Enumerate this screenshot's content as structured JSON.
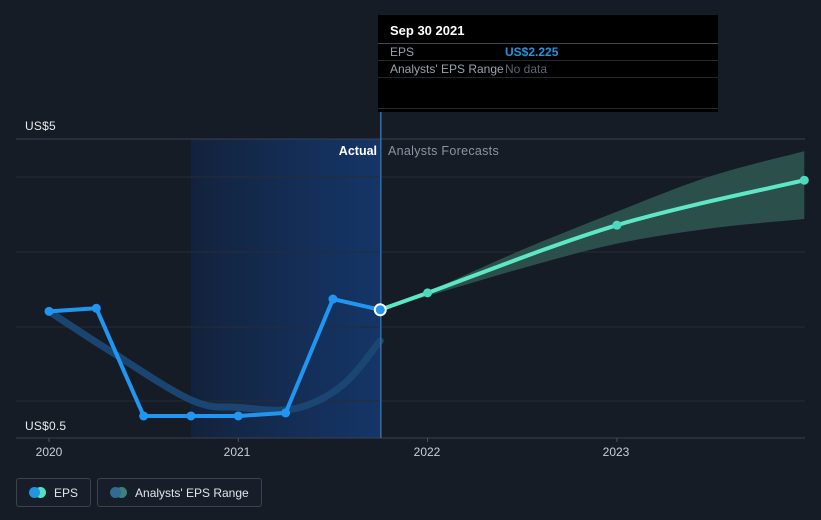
{
  "axes": {
    "y_top_label": "US$5",
    "y_bottom_label": "US$0.5",
    "x_ticks": [
      "2020",
      "2021",
      "2022",
      "2023"
    ]
  },
  "regions": {
    "actual_label": "Actual",
    "forecast_label": "Analysts Forecasts"
  },
  "tooltip": {
    "date": "Sep 30 2021",
    "rows": [
      {
        "label": "EPS",
        "value": "US$2.225",
        "value_color": "#2394df"
      },
      {
        "label": "Analysts' EPS Range",
        "value": "No data",
        "value_color": "#5d6674"
      }
    ]
  },
  "legend": [
    {
      "label": "EPS",
      "colors": [
        "#2394df",
        "#55dec2"
      ]
    },
    {
      "label": "Analysts' EPS Range",
      "colors": [
        "#2f6b93",
        "#41807a"
      ]
    }
  ],
  "colors": {
    "background": "#161c26",
    "eps_actual_line": "#2196f0",
    "eps_forecast_line": "#5de7c5",
    "forecast_marker": "#4fd9bc",
    "past_range_line": "#1b4875",
    "forecast_band_fill": "#2b4f4b",
    "divider_line": "#36699e",
    "gridline": "#252c38",
    "axis_line": "#3a4150"
  },
  "chart_data": {
    "type": "line",
    "title": "EPS: actual vs analysts forecasts",
    "x_tick_years": [
      2020,
      2021,
      2022,
      2023
    ],
    "y_axis": {
      "top_value": 5.0,
      "bottom_value": 0.5,
      "top_label": "US$5",
      "bottom_label": "US$0.5"
    },
    "divider_year": 2021.75,
    "highlight_span_years": [
      2020.75,
      2021.75
    ],
    "series": [
      {
        "name": "EPS (actual)",
        "smooth": false,
        "x": [
          2020.0,
          2020.25,
          2020.5,
          2020.75,
          2021.0,
          2021.25,
          2021.5,
          2021.75
        ],
        "values": [
          2.2,
          2.25,
          0.5,
          0.5,
          0.5,
          0.55,
          2.4,
          2.225
        ]
      },
      {
        "name": "EPS (analysts forecast)",
        "smooth": true,
        "x": [
          2021.75,
          2022.0,
          2023.0,
          2023.99
        ],
        "values": [
          2.225,
          2.5,
          3.6,
          4.33
        ]
      },
      {
        "name": "Analysts' EPS Range (past)",
        "smooth": true,
        "x": [
          2020.0,
          2020.3,
          2020.75,
          2021.0,
          2021.3,
          2021.55,
          2021.75
        ],
        "values": [
          2.2,
          1.6,
          0.76,
          0.64,
          0.62,
          1.0,
          1.72
        ]
      },
      {
        "name": "Analysts' EPS Range (forecast band)",
        "type": "band",
        "x": [
          2021.75,
          2022.0,
          2022.5,
          2023.0,
          2023.5,
          2023.99
        ],
        "upper": [
          2.225,
          2.52,
          3.2,
          3.82,
          4.4,
          4.8
        ],
        "lower": [
          2.225,
          2.45,
          2.9,
          3.3,
          3.55,
          3.7
        ]
      }
    ],
    "highlighted_point": {
      "series": "EPS (actual)",
      "x": 2021.75,
      "value": 2.225,
      "date": "Sep 30 2021"
    }
  }
}
